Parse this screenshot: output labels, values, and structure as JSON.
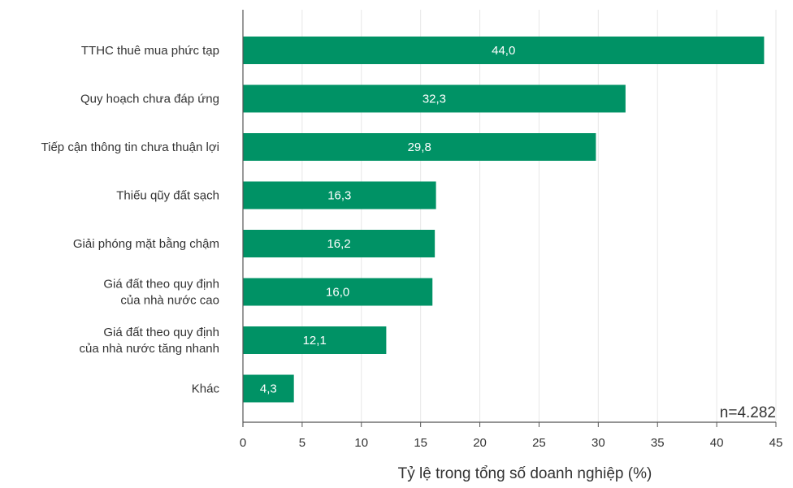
{
  "chart_data": {
    "type": "bar",
    "orientation": "horizontal",
    "categories": [
      "TTHC thuê mua phức tạp",
      "Quy hoạch chưa đáp ứng",
      "Tiếp cận thông tin chưa thuận lợi",
      "Thiếu qũy đất sạch",
      "Giải phóng mặt bằng chậm",
      "Giá đất theo quy định\ncủa nhà nước cao",
      "Giá đất theo quy định\ncủa nhà nước tăng nhanh",
      "Khác"
    ],
    "values": [
      44.0,
      32.3,
      29.8,
      16.3,
      16.2,
      16.0,
      12.1,
      4.3
    ],
    "value_labels": [
      "44,0",
      "32,3",
      "29,8",
      "16,3",
      "16,2",
      "16,0",
      "12,1",
      "4,3"
    ],
    "xlabel": "Tỷ lệ trong tổng số doanh nghiệp (%)",
    "xlim": [
      0,
      45
    ],
    "x_ticks": [
      0,
      5,
      10,
      15,
      20,
      25,
      30,
      35,
      40,
      45
    ],
    "grid": true,
    "annotation": "n=4.282",
    "bar_color": "#009265"
  }
}
